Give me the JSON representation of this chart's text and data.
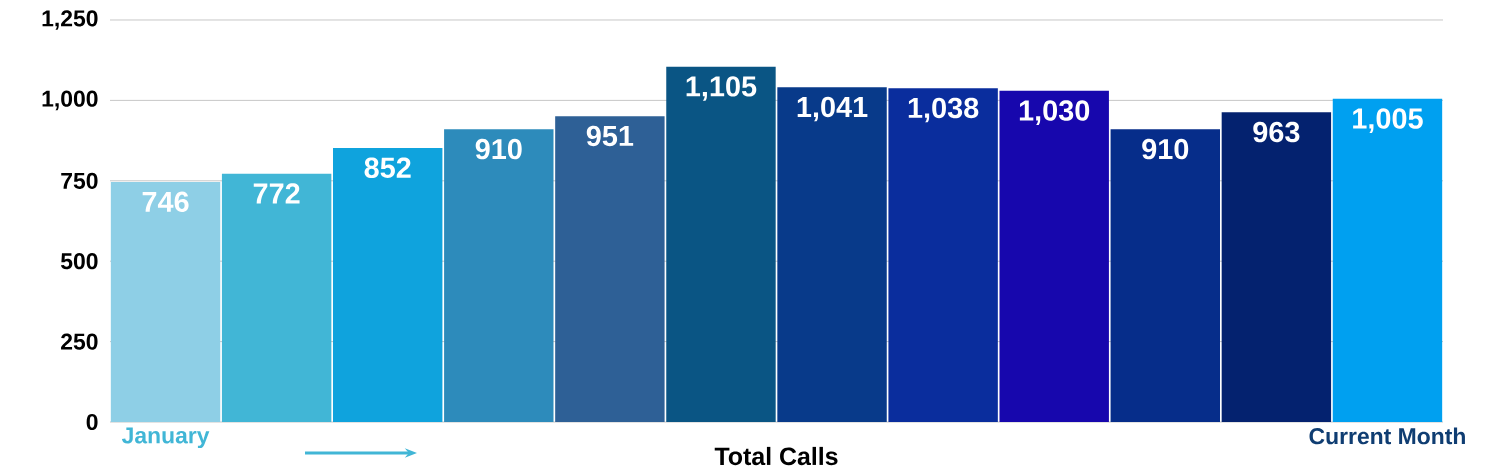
{
  "chart_data": {
    "type": "bar",
    "xlabel": "Total Calls",
    "categories": [
      "January",
      null,
      null,
      null,
      null,
      null,
      null,
      null,
      null,
      null,
      null,
      "Current Month"
    ],
    "values": [
      746,
      772,
      852,
      910,
      951,
      1105,
      1041,
      1038,
      1030,
      910,
      963,
      1005
    ],
    "colors": [
      "#8ecfe6",
      "#41b6d6",
      "#0fa3dd",
      "#2d8bbb",
      "#2e6096",
      "#0a5584",
      "#083a8a",
      "#0a2d9d",
      "#1707ad",
      "#062d8a",
      "#04226f",
      "#00a0f0"
    ],
    "ylim": [
      0,
      1250
    ],
    "yticks": [
      0,
      250,
      500,
      750,
      {
        "value": 1000,
        "label": "1,000"
      },
      {
        "value": 1250,
        "label": "1,250"
      }
    ],
    "value_labels": [
      "746",
      "772",
      "852",
      "910",
      "951",
      "1,105",
      "1,041",
      "1,038",
      "1,030",
      "910",
      "963",
      "1,005"
    ],
    "grid": "y"
  }
}
